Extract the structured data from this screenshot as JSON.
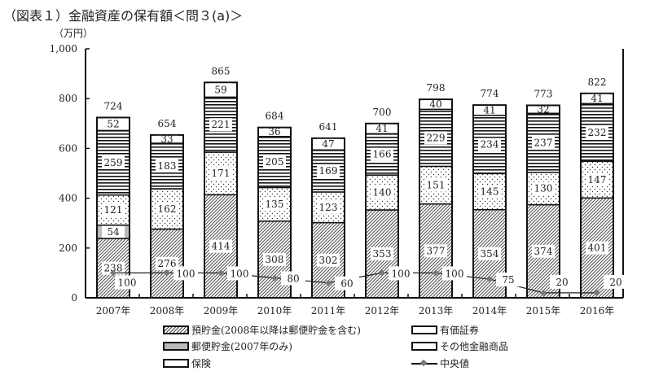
{
  "chart_data": {
    "type": "bar",
    "stacked": true,
    "title": "（図表１）金融資産の保有額＜問３(a)＞",
    "ylabel": "（万円）",
    "ylim": [
      0,
      1000
    ],
    "yticks": [
      0,
      200,
      400,
      600,
      800,
      1000
    ],
    "ytick_labels": [
      "0",
      "200",
      "400",
      "600",
      "800",
      "1,000"
    ],
    "categories": [
      "2007年",
      "2008年",
      "2009年",
      "2010年",
      "2011年",
      "2012年",
      "2013年",
      "2014年",
      "2015年",
      "2016年"
    ],
    "series": [
      {
        "name": "預貯金(2008年以降は郵便貯金を含む)",
        "pattern": "hatch",
        "values": [
          238,
          276,
          414,
          308,
          302,
          353,
          377,
          354,
          374,
          401
        ]
      },
      {
        "name": "郵便貯金(2007年のみ)",
        "pattern": "gray",
        "values": [
          54,
          null,
          null,
          null,
          null,
          null,
          null,
          null,
          null,
          null
        ]
      },
      {
        "name": "その他金融商品",
        "pattern": "dots",
        "values": [
          121,
          162,
          171,
          135,
          123,
          140,
          151,
          145,
          130,
          147
        ]
      },
      {
        "name": "有価証券",
        "pattern": "stripes",
        "values": [
          259,
          183,
          221,
          205,
          169,
          166,
          229,
          234,
          237,
          232
        ]
      },
      {
        "name": "保険",
        "pattern": "white",
        "values": [
          52,
          33,
          59,
          36,
          47,
          41,
          40,
          41,
          32,
          41
        ]
      }
    ],
    "totals": [
      724,
      654,
      865,
      684,
      641,
      700,
      798,
      774,
      773,
      822
    ],
    "median": {
      "name": "中央値",
      "values": [
        100,
        100,
        100,
        80,
        60,
        100,
        100,
        75,
        20,
        20
      ]
    },
    "legend_order": [
      0,
      3,
      1,
      2,
      4,
      "median"
    ]
  }
}
